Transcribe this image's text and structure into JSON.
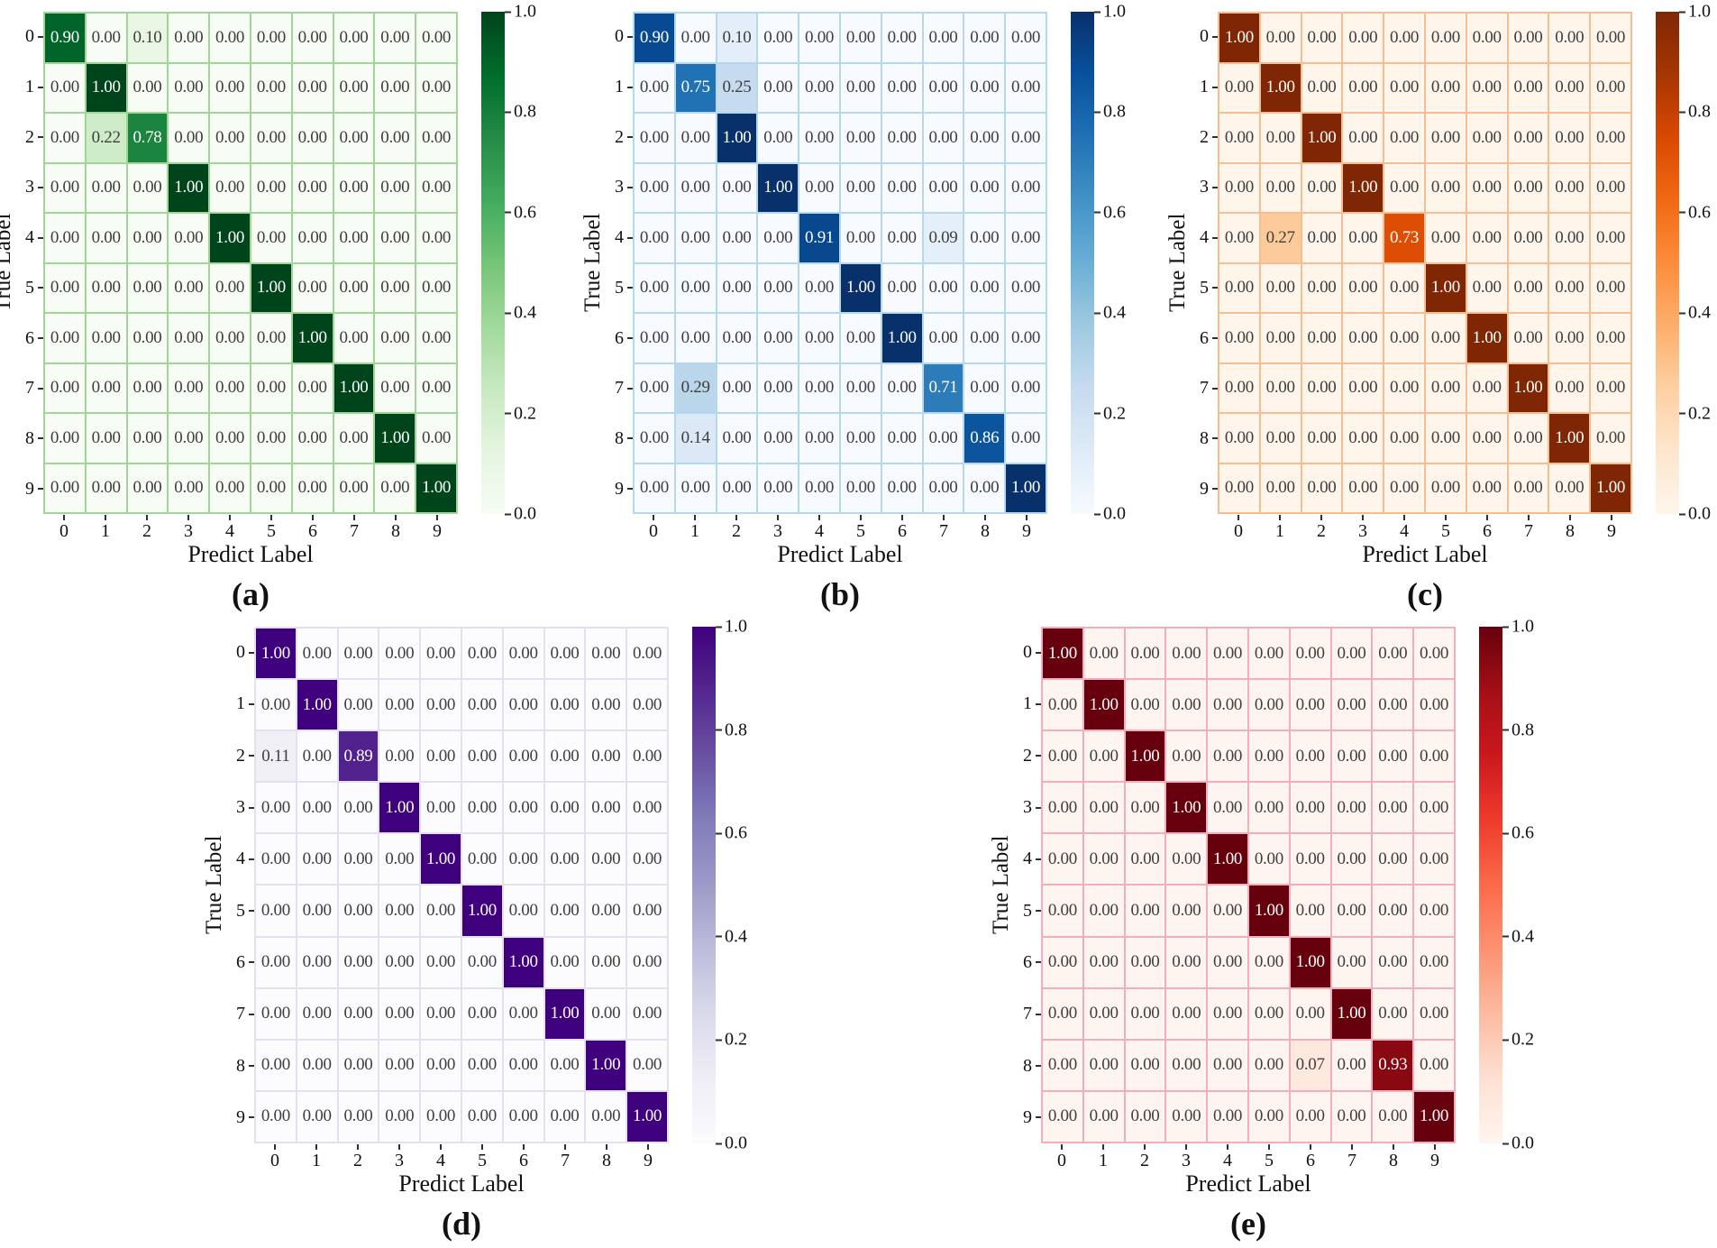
{
  "colors": {
    "background": "#ffffff",
    "cell_text_dark": "#3e3e3e",
    "cell_text_light": "#ffffff",
    "tick_mark": "#2f2f2f"
  },
  "axis_ticks": [
    "0",
    "1",
    "2",
    "3",
    "4",
    "5",
    "6",
    "7",
    "8",
    "9"
  ],
  "colorbar_ticks": [
    "1.0",
    "0.8",
    "0.6",
    "0.4",
    "0.2",
    "0.0"
  ],
  "chart_data": [
    {
      "type": "heatmap",
      "panel": "(a)",
      "colormap": "Greens",
      "xlabel": "Predict Label",
      "ylabel": "True Label",
      "x_categories": [
        "0",
        "1",
        "2",
        "3",
        "4",
        "5",
        "6",
        "7",
        "8",
        "9"
      ],
      "y_categories": [
        "0",
        "1",
        "2",
        "3",
        "4",
        "5",
        "6",
        "7",
        "8",
        "9"
      ],
      "vmin": 0.0,
      "vmax": 1.0,
      "line_color": "#a1d59a",
      "anchors": [
        "#f7fcf5",
        "#e5f5e0",
        "#c7e9c0",
        "#a1d99b",
        "#74c476",
        "#41ab5d",
        "#238b45",
        "#006d2c",
        "#00441b"
      ],
      "values": [
        [
          0.9,
          0.0,
          0.1,
          0.0,
          0.0,
          0.0,
          0.0,
          0.0,
          0.0,
          0.0
        ],
        [
          0.0,
          1.0,
          0.0,
          0.0,
          0.0,
          0.0,
          0.0,
          0.0,
          0.0,
          0.0
        ],
        [
          0.0,
          0.22,
          0.78,
          0.0,
          0.0,
          0.0,
          0.0,
          0.0,
          0.0,
          0.0
        ],
        [
          0.0,
          0.0,
          0.0,
          1.0,
          0.0,
          0.0,
          0.0,
          0.0,
          0.0,
          0.0
        ],
        [
          0.0,
          0.0,
          0.0,
          0.0,
          1.0,
          0.0,
          0.0,
          0.0,
          0.0,
          0.0
        ],
        [
          0.0,
          0.0,
          0.0,
          0.0,
          0.0,
          1.0,
          0.0,
          0.0,
          0.0,
          0.0
        ],
        [
          0.0,
          0.0,
          0.0,
          0.0,
          0.0,
          0.0,
          1.0,
          0.0,
          0.0,
          0.0
        ],
        [
          0.0,
          0.0,
          0.0,
          0.0,
          0.0,
          0.0,
          0.0,
          1.0,
          0.0,
          0.0
        ],
        [
          0.0,
          0.0,
          0.0,
          0.0,
          0.0,
          0.0,
          0.0,
          0.0,
          1.0,
          0.0
        ],
        [
          0.0,
          0.0,
          0.0,
          0.0,
          0.0,
          0.0,
          0.0,
          0.0,
          0.0,
          1.0
        ]
      ]
    },
    {
      "type": "heatmap",
      "panel": "(b)",
      "colormap": "Blues",
      "xlabel": "Predict Label",
      "ylabel": "True Label",
      "x_categories": [
        "0",
        "1",
        "2",
        "3",
        "4",
        "5",
        "6",
        "7",
        "8",
        "9"
      ],
      "y_categories": [
        "0",
        "1",
        "2",
        "3",
        "4",
        "5",
        "6",
        "7",
        "8",
        "9"
      ],
      "vmin": 0.0,
      "vmax": 1.0,
      "line_color": "#b5d8ec",
      "anchors": [
        "#f7fbff",
        "#deebf7",
        "#c6dbef",
        "#9ecae1",
        "#6baed6",
        "#4292c6",
        "#2171b5",
        "#08519c",
        "#08306b"
      ],
      "values": [
        [
          0.9,
          0.0,
          0.1,
          0.0,
          0.0,
          0.0,
          0.0,
          0.0,
          0.0,
          0.0
        ],
        [
          0.0,
          0.75,
          0.25,
          0.0,
          0.0,
          0.0,
          0.0,
          0.0,
          0.0,
          0.0
        ],
        [
          0.0,
          0.0,
          1.0,
          0.0,
          0.0,
          0.0,
          0.0,
          0.0,
          0.0,
          0.0
        ],
        [
          0.0,
          0.0,
          0.0,
          1.0,
          0.0,
          0.0,
          0.0,
          0.0,
          0.0,
          0.0
        ],
        [
          0.0,
          0.0,
          0.0,
          0.0,
          0.91,
          0.0,
          0.0,
          0.09,
          0.0,
          0.0
        ],
        [
          0.0,
          0.0,
          0.0,
          0.0,
          0.0,
          1.0,
          0.0,
          0.0,
          0.0,
          0.0
        ],
        [
          0.0,
          0.0,
          0.0,
          0.0,
          0.0,
          0.0,
          1.0,
          0.0,
          0.0,
          0.0
        ],
        [
          0.0,
          0.29,
          0.0,
          0.0,
          0.0,
          0.0,
          0.0,
          0.71,
          0.0,
          0.0
        ],
        [
          0.0,
          0.14,
          0.0,
          0.0,
          0.0,
          0.0,
          0.0,
          0.0,
          0.86,
          0.0
        ],
        [
          0.0,
          0.0,
          0.0,
          0.0,
          0.0,
          0.0,
          0.0,
          0.0,
          0.0,
          1.0
        ]
      ]
    },
    {
      "type": "heatmap",
      "panel": "(c)",
      "colormap": "Oranges",
      "xlabel": "Predict Label",
      "ylabel": "True Label",
      "x_categories": [
        "0",
        "1",
        "2",
        "3",
        "4",
        "5",
        "6",
        "7",
        "8",
        "9"
      ],
      "y_categories": [
        "0",
        "1",
        "2",
        "3",
        "4",
        "5",
        "6",
        "7",
        "8",
        "9"
      ],
      "vmin": 0.0,
      "vmax": 1.0,
      "line_color": "#f6bd92",
      "anchors": [
        "#fff5eb",
        "#fee6ce",
        "#fdd0a2",
        "#fdae6b",
        "#fd8d3c",
        "#f16913",
        "#d94801",
        "#a63603",
        "#7f2704"
      ],
      "values": [
        [
          1.0,
          0.0,
          0.0,
          0.0,
          0.0,
          0.0,
          0.0,
          0.0,
          0.0,
          0.0
        ],
        [
          0.0,
          1.0,
          0.0,
          0.0,
          0.0,
          0.0,
          0.0,
          0.0,
          0.0,
          0.0
        ],
        [
          0.0,
          0.0,
          1.0,
          0.0,
          0.0,
          0.0,
          0.0,
          0.0,
          0.0,
          0.0
        ],
        [
          0.0,
          0.0,
          0.0,
          1.0,
          0.0,
          0.0,
          0.0,
          0.0,
          0.0,
          0.0
        ],
        [
          0.0,
          0.27,
          0.0,
          0.0,
          0.73,
          0.0,
          0.0,
          0.0,
          0.0,
          0.0
        ],
        [
          0.0,
          0.0,
          0.0,
          0.0,
          0.0,
          1.0,
          0.0,
          0.0,
          0.0,
          0.0
        ],
        [
          0.0,
          0.0,
          0.0,
          0.0,
          0.0,
          0.0,
          1.0,
          0.0,
          0.0,
          0.0
        ],
        [
          0.0,
          0.0,
          0.0,
          0.0,
          0.0,
          0.0,
          0.0,
          1.0,
          0.0,
          0.0
        ],
        [
          0.0,
          0.0,
          0.0,
          0.0,
          0.0,
          0.0,
          0.0,
          0.0,
          1.0,
          0.0
        ],
        [
          0.0,
          0.0,
          0.0,
          0.0,
          0.0,
          0.0,
          0.0,
          0.0,
          0.0,
          1.0
        ]
      ]
    },
    {
      "type": "heatmap",
      "panel": "(d)",
      "colormap": "Purples",
      "xlabel": "Predict Label",
      "ylabel": "True Label",
      "x_categories": [
        "0",
        "1",
        "2",
        "3",
        "4",
        "5",
        "6",
        "7",
        "8",
        "9"
      ],
      "y_categories": [
        "0",
        "1",
        "2",
        "3",
        "4",
        "5",
        "6",
        "7",
        "8",
        "9"
      ],
      "vmin": 0.0,
      "vmax": 1.0,
      "line_color": "#e3e1ed",
      "anchors": [
        "#fcfbfd",
        "#efedf5",
        "#dadaeb",
        "#bcbddc",
        "#9e9ac8",
        "#807dba",
        "#6a51a3",
        "#54278f",
        "#3f007d"
      ],
      "values": [
        [
          1.0,
          0.0,
          0.0,
          0.0,
          0.0,
          0.0,
          0.0,
          0.0,
          0.0,
          0.0
        ],
        [
          0.0,
          1.0,
          0.0,
          0.0,
          0.0,
          0.0,
          0.0,
          0.0,
          0.0,
          0.0
        ],
        [
          0.11,
          0.0,
          0.89,
          0.0,
          0.0,
          0.0,
          0.0,
          0.0,
          0.0,
          0.0
        ],
        [
          0.0,
          0.0,
          0.0,
          1.0,
          0.0,
          0.0,
          0.0,
          0.0,
          0.0,
          0.0
        ],
        [
          0.0,
          0.0,
          0.0,
          0.0,
          1.0,
          0.0,
          0.0,
          0.0,
          0.0,
          0.0
        ],
        [
          0.0,
          0.0,
          0.0,
          0.0,
          0.0,
          1.0,
          0.0,
          0.0,
          0.0,
          0.0
        ],
        [
          0.0,
          0.0,
          0.0,
          0.0,
          0.0,
          0.0,
          1.0,
          0.0,
          0.0,
          0.0
        ],
        [
          0.0,
          0.0,
          0.0,
          0.0,
          0.0,
          0.0,
          0.0,
          1.0,
          0.0,
          0.0
        ],
        [
          0.0,
          0.0,
          0.0,
          0.0,
          0.0,
          0.0,
          0.0,
          0.0,
          1.0,
          0.0
        ],
        [
          0.0,
          0.0,
          0.0,
          0.0,
          0.0,
          0.0,
          0.0,
          0.0,
          0.0,
          1.0
        ]
      ]
    },
    {
      "type": "heatmap",
      "panel": "(e)",
      "colormap": "Reds",
      "xlabel": "Predict Label",
      "ylabel": "True Label",
      "x_categories": [
        "0",
        "1",
        "2",
        "3",
        "4",
        "5",
        "6",
        "7",
        "8",
        "9"
      ],
      "y_categories": [
        "0",
        "1",
        "2",
        "3",
        "4",
        "5",
        "6",
        "7",
        "8",
        "9"
      ],
      "vmin": 0.0,
      "vmax": 1.0,
      "line_color": "#f2aebc",
      "anchors": [
        "#fff5f0",
        "#fee0d2",
        "#fcbba1",
        "#fc9272",
        "#fb6a4a",
        "#ef3b2c",
        "#cb181d",
        "#a50f15",
        "#67000d"
      ],
      "values": [
        [
          1.0,
          0.0,
          0.0,
          0.0,
          0.0,
          0.0,
          0.0,
          0.0,
          0.0,
          0.0
        ],
        [
          0.0,
          1.0,
          0.0,
          0.0,
          0.0,
          0.0,
          0.0,
          0.0,
          0.0,
          0.0
        ],
        [
          0.0,
          0.0,
          1.0,
          0.0,
          0.0,
          0.0,
          0.0,
          0.0,
          0.0,
          0.0
        ],
        [
          0.0,
          0.0,
          0.0,
          1.0,
          0.0,
          0.0,
          0.0,
          0.0,
          0.0,
          0.0
        ],
        [
          0.0,
          0.0,
          0.0,
          0.0,
          1.0,
          0.0,
          0.0,
          0.0,
          0.0,
          0.0
        ],
        [
          0.0,
          0.0,
          0.0,
          0.0,
          0.0,
          1.0,
          0.0,
          0.0,
          0.0,
          0.0
        ],
        [
          0.0,
          0.0,
          0.0,
          0.0,
          0.0,
          0.0,
          1.0,
          0.0,
          0.0,
          0.0
        ],
        [
          0.0,
          0.0,
          0.0,
          0.0,
          0.0,
          0.0,
          0.0,
          1.0,
          0.0,
          0.0
        ],
        [
          0.0,
          0.0,
          0.0,
          0.0,
          0.0,
          0.0,
          0.07,
          0.0,
          0.93,
          0.0
        ],
        [
          0.0,
          0.0,
          0.0,
          0.0,
          0.0,
          0.0,
          0.0,
          0.0,
          0.0,
          1.0
        ]
      ]
    }
  ]
}
